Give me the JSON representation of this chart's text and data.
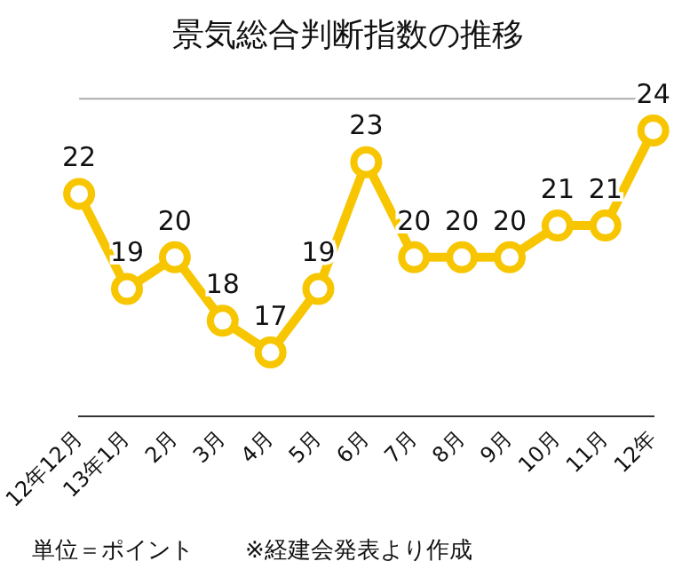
{
  "chart_data": {
    "type": "line",
    "title": "景気総合判断指数の推移",
    "categories": [
      "12年12月",
      "13年1月",
      "2月",
      "3月",
      "4月",
      "5月",
      "6月",
      "7月",
      "8月",
      "9月",
      "10月",
      "11月",
      "12年"
    ],
    "series": [
      {
        "color": "#f7c600",
        "values": [
          22,
          19,
          20,
          18,
          17,
          19,
          23,
          20,
          20,
          20,
          21,
          21,
          24
        ]
      }
    ],
    "ylim": [
      15,
      25
    ],
    "ref_lines": [
      {
        "axis": "y",
        "value": 25,
        "color": "#aaaaaa"
      }
    ],
    "tick_labels": "x",
    "legend": false,
    "marker": "circle",
    "line_style": "solid",
    "data_labels": true,
    "annotations": [
      "単位＝ポイント",
      "※経建会発表より作成"
    ]
  }
}
